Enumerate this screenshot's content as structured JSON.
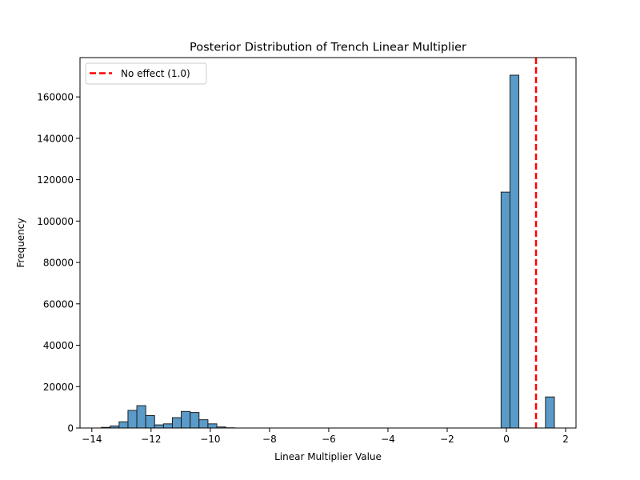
{
  "chart_data": {
    "type": "bar",
    "title": "Posterior Distribution of Trench Linear Multiplier",
    "xlabel": "Linear Multiplier Value",
    "ylabel": "Frequency",
    "xlim": [
      -14.4,
      2.35
    ],
    "ylim": [
      0,
      179000
    ],
    "xticks": [
      -14,
      -12,
      -10,
      -8,
      -6,
      -4,
      -2,
      0,
      2
    ],
    "yticks": [
      0,
      20000,
      40000,
      60000,
      80000,
      100000,
      120000,
      140000,
      160000
    ],
    "bin_start": -13.68,
    "bin_width": 0.3,
    "counts": [
      300,
      1000,
      3000,
      8500,
      10800,
      6000,
      1500,
      2000,
      5000,
      8000,
      7500,
      4000,
      2000,
      500,
      100,
      0,
      0,
      0,
      0,
      0,
      0,
      0,
      0,
      0,
      0,
      0,
      0,
      0,
      0,
      0,
      0,
      0,
      0,
      0,
      0,
      0,
      0,
      0,
      0,
      0,
      0,
      0,
      0,
      0,
      0,
      114000,
      170500,
      0,
      0,
      0,
      15000
    ],
    "bar_color": "#5a9bc9",
    "bar_edge_color": "#1f1f1f",
    "reference_line": {
      "x": 1.0,
      "label": "No effect (1.0)",
      "color": "#ff0000",
      "style": "dashed"
    },
    "legend_position": "upper-left",
    "grid": false
  }
}
